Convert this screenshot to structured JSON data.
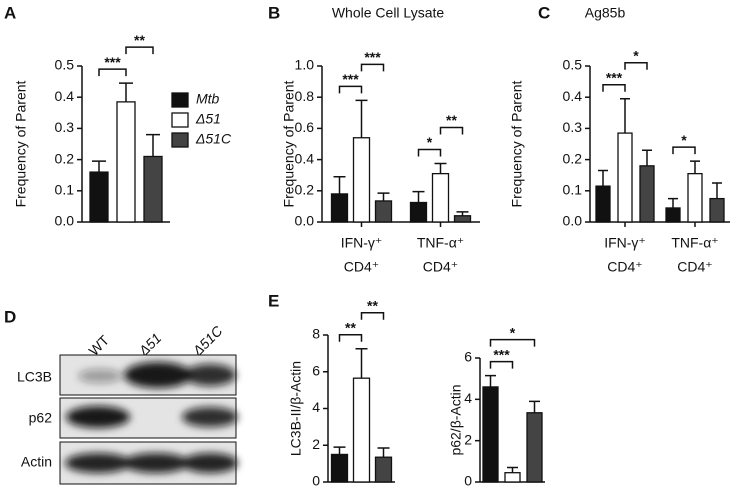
{
  "chart_data": [
    {
      "type": "bar",
      "panel": "A",
      "ylabel": "Frequency of Parent",
      "ylim": [
        0,
        0.5
      ],
      "yticks": [
        {
          "value": 0,
          "label": "0.0"
        },
        {
          "value": 0.1,
          "label": "0.1"
        },
        {
          "value": 0.2,
          "label": "0.2"
        },
        {
          "value": 0.3,
          "label": "0.3"
        },
        {
          "value": 0.4,
          "label": "0.4"
        },
        {
          "value": 0.5,
          "label": "0.5"
        }
      ],
      "categories": [
        null
      ],
      "series": [
        {
          "name": "Mtb",
          "color": "#111111",
          "values": [
            0.16
          ],
          "errors": [
            0.035
          ]
        },
        {
          "name": "Δ51",
          "color": "#ffffff",
          "values": [
            0.385
          ],
          "errors": [
            0.06
          ]
        },
        {
          "name": "Δ51C",
          "color": "#444444",
          "values": [
            0.21
          ],
          "errors": [
            0.07
          ]
        }
      ],
      "legend": "right",
      "brackets": [
        {
          "label": "***",
          "group": 0,
          "bars": [
            0,
            1
          ]
        },
        {
          "label": "**",
          "group": 0,
          "bars": [
            1,
            2
          ]
        }
      ]
    },
    {
      "type": "bar",
      "panel": "B",
      "title": "Whole Cell Lysate",
      "ylabel": "Frequency of Parent",
      "ylim": [
        0,
        1.0
      ],
      "yticks": [
        {
          "value": 0,
          "label": "0.0"
        },
        {
          "value": 0.2,
          "label": "0.2"
        },
        {
          "value": 0.4,
          "label": "0.4"
        },
        {
          "value": 0.6,
          "label": "0.6"
        },
        {
          "value": 0.8,
          "label": "0.8"
        },
        {
          "value": 1.0,
          "label": "1.0"
        }
      ],
      "categories": [
        [
          "IFN-γ⁺",
          "CD4⁺"
        ],
        [
          "TNF-α⁺",
          "CD4⁺"
        ]
      ],
      "series": [
        {
          "color": "#111111",
          "values": [
            0.18,
            0.125
          ],
          "errors": [
            0.11,
            0.07
          ]
        },
        {
          "color": "#ffffff",
          "values": [
            0.54,
            0.31
          ],
          "errors": [
            0.24,
            0.065
          ]
        },
        {
          "color": "#444444",
          "values": [
            0.135,
            0.04
          ],
          "errors": [
            0.05,
            0.025
          ]
        }
      ],
      "brackets": [
        {
          "label": "***",
          "group": 0,
          "bars": [
            0,
            1
          ]
        },
        {
          "label": "***",
          "group": 0,
          "bars": [
            1,
            2
          ]
        },
        {
          "label": "*",
          "group": 1,
          "bars": [
            0,
            1
          ]
        },
        {
          "label": "**",
          "group": 1,
          "bars": [
            1,
            2
          ]
        }
      ]
    },
    {
      "type": "bar",
      "panel": "C",
      "title": "Ag85b",
      "ylabel": "Frequency of Parent",
      "ylim": [
        0,
        0.5
      ],
      "yticks": [
        {
          "value": 0,
          "label": "0.0"
        },
        {
          "value": 0.1,
          "label": "0.1"
        },
        {
          "value": 0.2,
          "label": "0.2"
        },
        {
          "value": 0.3,
          "label": "0.3"
        },
        {
          "value": 0.4,
          "label": "0.4"
        },
        {
          "value": 0.5,
          "label": "0.5"
        }
      ],
      "categories": [
        [
          "IFN-γ⁺",
          "CD4⁺"
        ],
        [
          "TNF-α⁺",
          "CD4⁺"
        ]
      ],
      "series": [
        {
          "color": "#111111",
          "values": [
            0.115,
            0.045
          ],
          "errors": [
            0.05,
            0.03
          ]
        },
        {
          "color": "#ffffff",
          "values": [
            0.285,
            0.155
          ],
          "errors": [
            0.11,
            0.04
          ]
        },
        {
          "color": "#444444",
          "values": [
            0.18,
            0.075
          ],
          "errors": [
            0.05,
            0.05
          ]
        }
      ],
      "brackets": [
        {
          "label": "***",
          "group": 0,
          "bars": [
            0,
            1
          ]
        },
        {
          "label": "*",
          "group": 0,
          "bars": [
            1,
            2
          ]
        },
        {
          "label": "*",
          "group": 1,
          "bars": [
            0,
            1
          ]
        }
      ]
    },
    {
      "type": "bar",
      "panel": "E",
      "ylabel": "LC3B-II/β-Actin",
      "ylim": [
        0,
        8
      ],
      "yticks": [
        0,
        2,
        4,
        6,
        8
      ],
      "categories": [
        null
      ],
      "series": [
        {
          "color": "#111111",
          "values": [
            1.5
          ],
          "errors": [
            0.4
          ]
        },
        {
          "color": "#ffffff",
          "values": [
            5.65
          ],
          "errors": [
            1.6
          ]
        },
        {
          "color": "#444444",
          "values": [
            1.35
          ],
          "errors": [
            0.5
          ]
        }
      ],
      "brackets": [
        {
          "label": "**",
          "group": 0,
          "bars": [
            0,
            1
          ]
        },
        {
          "label": "**",
          "group": 0,
          "bars": [
            1,
            2
          ]
        }
      ]
    },
    {
      "type": "bar",
      "ylabel": "p62/β-Actin",
      "ylim": [
        0,
        6
      ],
      "yticks": [
        0,
        2,
        4,
        6
      ],
      "categories": [
        null
      ],
      "series": [
        {
          "color": "#111111",
          "values": [
            4.6
          ],
          "errors": [
            0.55
          ]
        },
        {
          "color": "#ffffff",
          "values": [
            0.45
          ],
          "errors": [
            0.25
          ]
        },
        {
          "color": "#444444",
          "values": [
            3.35
          ],
          "errors": [
            0.55
          ]
        }
      ],
      "brackets": [
        {
          "label": "***",
          "group": 0,
          "bars": [
            0,
            1
          ]
        },
        {
          "label": "*",
          "group": 0,
          "bars": [
            0,
            2
          ]
        }
      ]
    }
  ],
  "blot": {
    "panel": "D",
    "lanes": [
      "WT",
      "Δ51",
      "Δ51C"
    ],
    "rows": [
      "LC3B",
      "p62",
      "Actin"
    ]
  }
}
